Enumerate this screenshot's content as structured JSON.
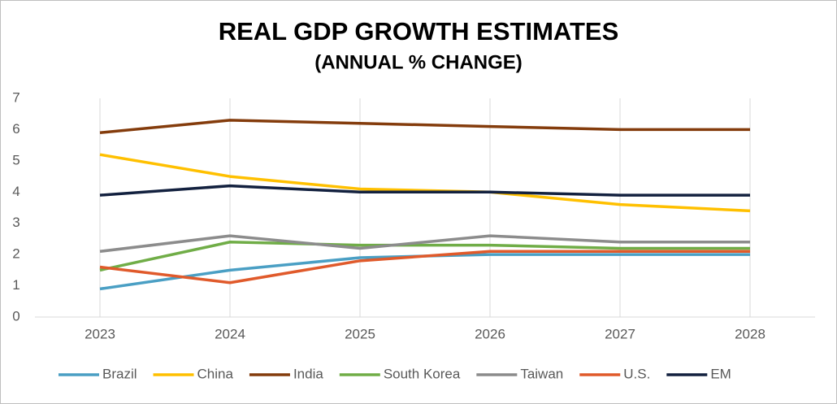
{
  "chart_data": {
    "type": "line",
    "title": "REAL GDP GROWTH ESTIMATES",
    "subtitle": "(ANNUAL % CHANGE)",
    "categories": [
      "2023",
      "2024",
      "2025",
      "2026",
      "2027",
      "2028"
    ],
    "series": [
      {
        "name": "Brazil",
        "color": "#4a9fc4",
        "values": [
          0.9,
          1.5,
          1.9,
          2.0,
          2.0,
          2.0
        ]
      },
      {
        "name": "China",
        "color": "#ffc000",
        "values": [
          5.2,
          4.5,
          4.1,
          4.0,
          3.6,
          3.4
        ]
      },
      {
        "name": "India",
        "color": "#843c0c",
        "values": [
          5.9,
          6.3,
          6.2,
          6.1,
          6.0,
          6.0
        ]
      },
      {
        "name": "South Korea",
        "color": "#70ad47",
        "values": [
          1.5,
          2.4,
          2.3,
          2.3,
          2.2,
          2.2
        ]
      },
      {
        "name": "Taiwan",
        "color": "#8c8c8c",
        "values": [
          2.1,
          2.6,
          2.2,
          2.6,
          2.4,
          2.4
        ]
      },
      {
        "name": "U.S.",
        "color": "#e05a2b",
        "values": [
          1.6,
          1.1,
          1.8,
          2.1,
          2.1,
          2.1
        ]
      },
      {
        "name": "EM",
        "color": "#13213f",
        "values": [
          3.9,
          4.2,
          4.0,
          4.0,
          3.9,
          3.9
        ]
      }
    ],
    "ylim": [
      0,
      7
    ],
    "yticks": [
      0,
      1,
      2,
      3,
      4,
      5,
      6,
      7
    ],
    "grid": true,
    "legend": "bottom"
  }
}
